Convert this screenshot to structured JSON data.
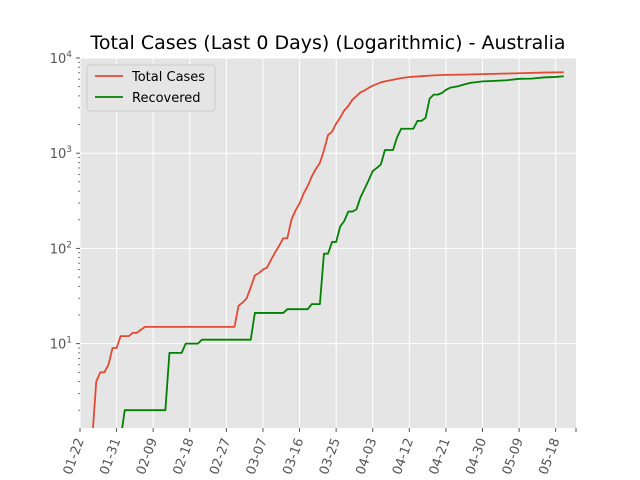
{
  "chart_data": {
    "type": "line",
    "title": "Total Cases (Last 0 Days) (Logarithmic) - Australia",
    "xlabel": "",
    "ylabel": "",
    "y_scale": "log",
    "ylim": [
      1.3,
      10000
    ],
    "x_range": [
      "2020-01-22",
      "2020-05-23"
    ],
    "grid": true,
    "legend_position": "top-left",
    "x_tick_labels": [
      "01-22",
      "01-31",
      "02-09",
      "02-18",
      "02-27",
      "03-07",
      "03-16",
      "03-25",
      "04-03",
      "04-12",
      "04-21",
      "04-30",
      "05-09",
      "05-18"
    ],
    "x_ticks": [
      "2020-01-22",
      "2020-01-31",
      "2020-02-09",
      "2020-02-18",
      "2020-02-27",
      "2020-03-07",
      "2020-03-16",
      "2020-03-25",
      "2020-04-03",
      "2020-04-12",
      "2020-04-21",
      "2020-04-30",
      "2020-05-09",
      "2020-05-18"
    ],
    "y_ticks": [
      10,
      100,
      1000,
      10000
    ],
    "series": [
      {
        "name": "Total Cases",
        "color": "#E24A33",
        "points": [
          [
            "2020-01-25",
            1
          ],
          [
            "2020-01-26",
            4
          ],
          [
            "2020-01-27",
            5
          ],
          [
            "2020-01-28",
            5
          ],
          [
            "2020-01-29",
            6
          ],
          [
            "2020-01-30",
            9
          ],
          [
            "2020-01-31",
            9
          ],
          [
            "2020-02-01",
            12
          ],
          [
            "2020-02-02",
            12
          ],
          [
            "2020-02-03",
            12
          ],
          [
            "2020-02-04",
            13
          ],
          [
            "2020-02-05",
            13
          ],
          [
            "2020-02-06",
            14
          ],
          [
            "2020-02-07",
            15
          ],
          [
            "2020-02-10",
            15
          ],
          [
            "2020-02-15",
            15
          ],
          [
            "2020-02-20",
            15
          ],
          [
            "2020-02-25",
            15
          ],
          [
            "2020-02-29",
            15
          ],
          [
            "2020-03-01",
            25
          ],
          [
            "2020-03-02",
            27
          ],
          [
            "2020-03-03",
            30
          ],
          [
            "2020-03-04",
            39
          ],
          [
            "2020-03-05",
            52
          ],
          [
            "2020-03-06",
            55
          ],
          [
            "2020-03-07",
            60
          ],
          [
            "2020-03-08",
            63
          ],
          [
            "2020-03-09",
            76
          ],
          [
            "2020-03-10",
            91
          ],
          [
            "2020-03-11",
            107
          ],
          [
            "2020-03-12",
            128
          ],
          [
            "2020-03-13",
            128
          ],
          [
            "2020-03-14",
            200
          ],
          [
            "2020-03-15",
            250
          ],
          [
            "2020-03-16",
            297
          ],
          [
            "2020-03-17",
            377
          ],
          [
            "2020-03-18",
            452
          ],
          [
            "2020-03-19",
            568
          ],
          [
            "2020-03-20",
            681
          ],
          [
            "2020-03-21",
            791
          ],
          [
            "2020-03-22",
            1071
          ],
          [
            "2020-03-23",
            1549
          ],
          [
            "2020-03-24",
            1682
          ],
          [
            "2020-03-25",
            2044
          ],
          [
            "2020-03-26",
            2364
          ],
          [
            "2020-03-27",
            2810
          ],
          [
            "2020-03-28",
            3143
          ],
          [
            "2020-03-29",
            3640
          ],
          [
            "2020-03-30",
            3984
          ],
          [
            "2020-03-31",
            4361
          ],
          [
            "2020-04-01",
            4557
          ],
          [
            "2020-04-02",
            4860
          ],
          [
            "2020-04-03",
            5116
          ],
          [
            "2020-04-04",
            5330
          ],
          [
            "2020-04-05",
            5550
          ],
          [
            "2020-04-06",
            5687
          ],
          [
            "2020-04-08",
            5910
          ],
          [
            "2020-04-10",
            6152
          ],
          [
            "2020-04-12",
            6313
          ],
          [
            "2020-04-15",
            6440
          ],
          [
            "2020-04-18",
            6565
          ],
          [
            "2020-04-21",
            6647
          ],
          [
            "2020-04-25",
            6695
          ],
          [
            "2020-04-30",
            6766
          ],
          [
            "2020-05-05",
            6849
          ],
          [
            "2020-05-10",
            6941
          ],
          [
            "2020-05-15",
            7036
          ],
          [
            "2020-05-20",
            7079
          ]
        ]
      },
      {
        "name": "Recovered",
        "color": "#008000",
        "points": [
          [
            "2020-02-01",
            1
          ],
          [
            "2020-02-02",
            2
          ],
          [
            "2020-02-05",
            2
          ],
          [
            "2020-02-10",
            2
          ],
          [
            "2020-02-12",
            2
          ],
          [
            "2020-02-13",
            8
          ],
          [
            "2020-02-16",
            8
          ],
          [
            "2020-02-17",
            10
          ],
          [
            "2020-02-20",
            10
          ],
          [
            "2020-02-21",
            11
          ],
          [
            "2020-02-25",
            11
          ],
          [
            "2020-03-01",
            11
          ],
          [
            "2020-03-04",
            11
          ],
          [
            "2020-03-05",
            21
          ],
          [
            "2020-03-08",
            21
          ],
          [
            "2020-03-11",
            21
          ],
          [
            "2020-03-12",
            21
          ],
          [
            "2020-03-13",
            23
          ],
          [
            "2020-03-16",
            23
          ],
          [
            "2020-03-18",
            23
          ],
          [
            "2020-03-19",
            26
          ],
          [
            "2020-03-21",
            26
          ],
          [
            "2020-03-22",
            88
          ],
          [
            "2020-03-23",
            88
          ],
          [
            "2020-03-24",
            117
          ],
          [
            "2020-03-25",
            117
          ],
          [
            "2020-03-26",
            170
          ],
          [
            "2020-03-27",
            194
          ],
          [
            "2020-03-28",
            244
          ],
          [
            "2020-03-29",
            244
          ],
          [
            "2020-03-30",
            257
          ],
          [
            "2020-03-31",
            345
          ],
          [
            "2020-04-01",
            422
          ],
          [
            "2020-04-02",
            520
          ],
          [
            "2020-04-03",
            649
          ],
          [
            "2020-04-04",
            701
          ],
          [
            "2020-04-05",
            761
          ],
          [
            "2020-04-06",
            1080
          ],
          [
            "2020-04-07",
            1080
          ],
          [
            "2020-04-08",
            1080
          ],
          [
            "2020-04-09",
            1472
          ],
          [
            "2020-04-10",
            1806
          ],
          [
            "2020-04-11",
            1806
          ],
          [
            "2020-04-12",
            1806
          ],
          [
            "2020-04-13",
            1806
          ],
          [
            "2020-04-14",
            2186
          ],
          [
            "2020-04-15",
            2186
          ],
          [
            "2020-04-16",
            2352
          ],
          [
            "2020-04-17",
            3747
          ],
          [
            "2020-04-18",
            4124
          ],
          [
            "2020-04-19",
            4124
          ],
          [
            "2020-04-20",
            4291
          ],
          [
            "2020-04-21",
            4618
          ],
          [
            "2020-04-22",
            4868
          ],
          [
            "2020-04-24",
            5051
          ],
          [
            "2020-04-25",
            5199
          ],
          [
            "2020-04-27",
            5476
          ],
          [
            "2020-04-30",
            5678
          ],
          [
            "2020-05-03",
            5748
          ],
          [
            "2020-05-06",
            5835
          ],
          [
            "2020-05-09",
            6046
          ],
          [
            "2020-05-12",
            6074
          ],
          [
            "2020-05-15",
            6252
          ],
          [
            "2020-05-18",
            6323
          ],
          [
            "2020-05-20",
            6435
          ]
        ]
      }
    ]
  }
}
